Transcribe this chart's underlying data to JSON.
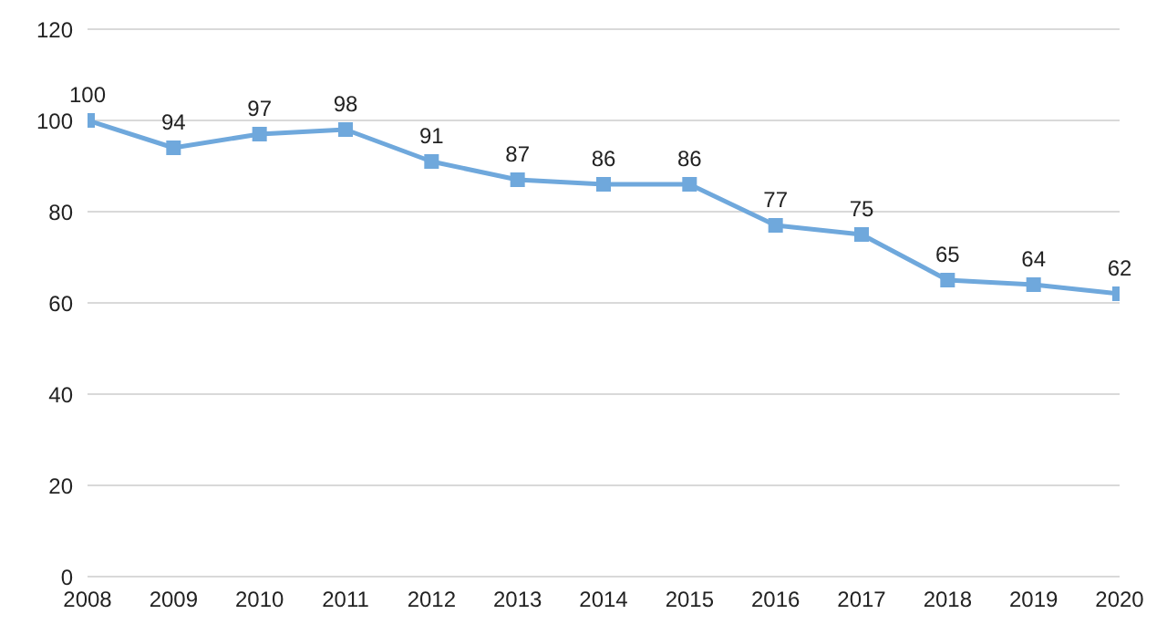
{
  "chart_data": {
    "type": "line",
    "x": [
      2008,
      2009,
      2010,
      2011,
      2012,
      2013,
      2014,
      2015,
      2016,
      2017,
      2018,
      2019,
      2020
    ],
    "series": [
      {
        "color": "#6fa8dc",
        "values": [
          100,
          94,
          97,
          98,
          91,
          87,
          86,
          86,
          77,
          75,
          65,
          64,
          62
        ]
      }
    ],
    "xlim": [
      2008,
      2020
    ],
    "xticks": [
      2008,
      2009,
      2010,
      2011,
      2012,
      2013,
      2014,
      2015,
      2016,
      2017,
      2018,
      2019,
      2020
    ],
    "ylim": [
      0,
      120
    ],
    "yticks": [
      0,
      20,
      40,
      60,
      80,
      100,
      120
    ],
    "grid": "y",
    "marker": "square",
    "line_style": "solid",
    "data_labels": true,
    "legend": false
  }
}
